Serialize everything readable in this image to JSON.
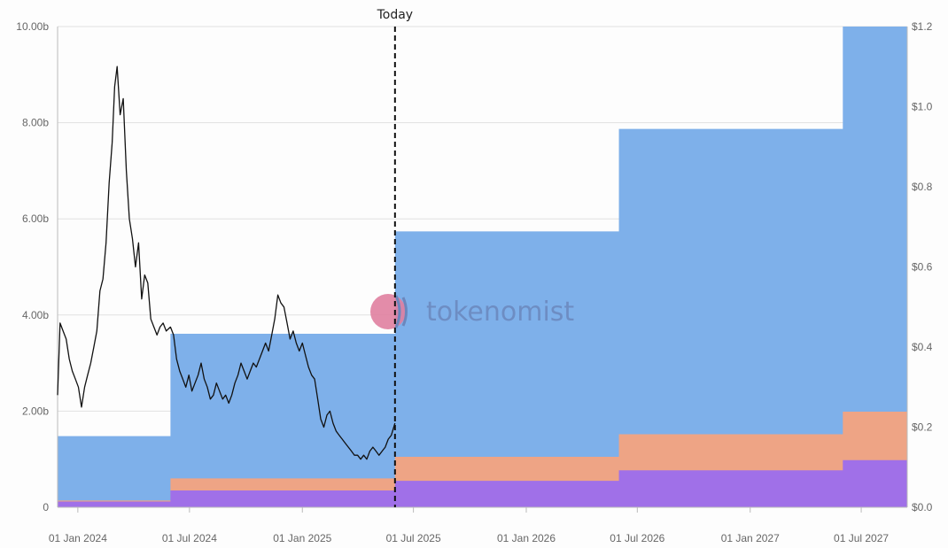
{
  "chart_data": {
    "type": "area",
    "watermark": "tokenomist",
    "today_label": "Today",
    "today_date": "2025-06-01",
    "x_range": [
      "2023-11-29",
      "2027-09-14"
    ],
    "x_ticks": [
      {
        "date": "2024-01-01",
        "label": "01 Jan 2024"
      },
      {
        "date": "2024-07-01",
        "label": "01 Jul 2024"
      },
      {
        "date": "2025-01-01",
        "label": "01 Jan 2025"
      },
      {
        "date": "2025-07-01",
        "label": "01 Jul 2025"
      },
      {
        "date": "2026-01-01",
        "label": "01 Jan 2026"
      },
      {
        "date": "2026-07-01",
        "label": "01 Jul 2026"
      },
      {
        "date": "2027-01-01",
        "label": "01 Jan 2027"
      },
      {
        "date": "2027-07-01",
        "label": "01 Jul 2027"
      }
    ],
    "y_left": {
      "range": [
        0,
        10
      ],
      "ticks": [
        {
          "value": 0,
          "label": "0"
        },
        {
          "value": 2,
          "label": "2.00b"
        },
        {
          "value": 4,
          "label": "4.00b"
        },
        {
          "value": 6,
          "label": "6.00b"
        },
        {
          "value": 8,
          "label": "8.00b"
        },
        {
          "value": 10,
          "label": "10.00b"
        }
      ]
    },
    "y_right": {
      "range": [
        0,
        1.2
      ],
      "ticks": [
        {
          "value": 0,
          "label": "$0.0"
        },
        {
          "value": 0.2,
          "label": "$0.2"
        },
        {
          "value": 0.4,
          "label": "$0.4"
        },
        {
          "value": 0.6,
          "label": "$0.6"
        },
        {
          "value": 0.8,
          "label": "$0.8"
        },
        {
          "value": 1.0,
          "label": "$1.0"
        },
        {
          "value": 1.2,
          "label": "$1.2"
        }
      ]
    },
    "grid": true,
    "series": [
      {
        "color": "#a070e8",
        "steps": [
          {
            "date": "2023-11-29",
            "value": 0.12
          },
          {
            "date": "2024-05-31",
            "value": 0.35
          },
          {
            "date": "2025-06-01",
            "value": 0.55
          },
          {
            "date": "2026-06-01",
            "value": 0.77
          },
          {
            "date": "2027-06-01",
            "value": 0.98
          }
        ]
      },
      {
        "color": "#eea485",
        "steps": [
          {
            "date": "2023-11-29",
            "value": 0.14
          },
          {
            "date": "2024-05-31",
            "value": 0.6
          },
          {
            "date": "2025-06-01",
            "value": 1.05
          },
          {
            "date": "2026-06-01",
            "value": 1.52
          },
          {
            "date": "2027-06-01",
            "value": 1.99
          }
        ]
      },
      {
        "color": "#7eb0ea",
        "steps": [
          {
            "date": "2023-11-29",
            "value": 1.48
          },
          {
            "date": "2024-05-31",
            "value": 3.61
          },
          {
            "date": "2025-06-01",
            "value": 5.74
          },
          {
            "date": "2026-06-01",
            "value": 7.87
          },
          {
            "date": "2027-06-01",
            "value": 10.0
          }
        ]
      }
    ],
    "price_series": {
      "axis": "right",
      "color": "#111111",
      "points": [
        [
          "2023-11-29",
          0.28
        ],
        [
          "2023-12-03",
          0.46
        ],
        [
          "2023-12-08",
          0.44
        ],
        [
          "2023-12-13",
          0.42
        ],
        [
          "2023-12-18",
          0.37
        ],
        [
          "2023-12-23",
          0.34
        ],
        [
          "2023-12-28",
          0.32
        ],
        [
          "2024-01-02",
          0.3
        ],
        [
          "2024-01-07",
          0.25
        ],
        [
          "2024-01-12",
          0.3
        ],
        [
          "2024-01-17",
          0.33
        ],
        [
          "2024-01-22",
          0.36
        ],
        [
          "2024-01-27",
          0.4
        ],
        [
          "2024-02-01",
          0.44
        ],
        [
          "2024-02-06",
          0.54
        ],
        [
          "2024-02-11",
          0.57
        ],
        [
          "2024-02-16",
          0.66
        ],
        [
          "2024-02-21",
          0.81
        ],
        [
          "2024-02-26",
          0.91
        ],
        [
          "2024-03-01",
          1.05
        ],
        [
          "2024-03-05",
          1.1
        ],
        [
          "2024-03-10",
          0.98
        ],
        [
          "2024-03-15",
          1.02
        ],
        [
          "2024-03-20",
          0.84
        ],
        [
          "2024-03-25",
          0.72
        ],
        [
          "2024-03-30",
          0.67
        ],
        [
          "2024-04-04",
          0.6
        ],
        [
          "2024-04-09",
          0.66
        ],
        [
          "2024-04-14",
          0.52
        ],
        [
          "2024-04-19",
          0.58
        ],
        [
          "2024-04-24",
          0.56
        ],
        [
          "2024-04-29",
          0.47
        ],
        [
          "2024-05-04",
          0.45
        ],
        [
          "2024-05-09",
          0.43
        ],
        [
          "2024-05-14",
          0.45
        ],
        [
          "2024-05-19",
          0.46
        ],
        [
          "2024-05-24",
          0.44
        ],
        [
          "2024-05-31",
          0.45
        ],
        [
          "2024-06-05",
          0.43
        ],
        [
          "2024-06-10",
          0.37
        ],
        [
          "2024-06-15",
          0.34
        ],
        [
          "2024-06-20",
          0.32
        ],
        [
          "2024-06-25",
          0.3
        ],
        [
          "2024-06-30",
          0.33
        ],
        [
          "2024-07-05",
          0.29
        ],
        [
          "2024-07-10",
          0.31
        ],
        [
          "2024-07-15",
          0.33
        ],
        [
          "2024-07-20",
          0.36
        ],
        [
          "2024-07-25",
          0.32
        ],
        [
          "2024-07-30",
          0.3
        ],
        [
          "2024-08-04",
          0.27
        ],
        [
          "2024-08-09",
          0.28
        ],
        [
          "2024-08-14",
          0.31
        ],
        [
          "2024-08-19",
          0.29
        ],
        [
          "2024-08-24",
          0.27
        ],
        [
          "2024-08-29",
          0.28
        ],
        [
          "2024-09-03",
          0.26
        ],
        [
          "2024-09-08",
          0.28
        ],
        [
          "2024-09-13",
          0.31
        ],
        [
          "2024-09-18",
          0.33
        ],
        [
          "2024-09-23",
          0.36
        ],
        [
          "2024-09-28",
          0.34
        ],
        [
          "2024-10-03",
          0.32
        ],
        [
          "2024-10-08",
          0.34
        ],
        [
          "2024-10-13",
          0.36
        ],
        [
          "2024-10-18",
          0.35
        ],
        [
          "2024-10-23",
          0.37
        ],
        [
          "2024-10-28",
          0.39
        ],
        [
          "2024-11-02",
          0.41
        ],
        [
          "2024-11-07",
          0.39
        ],
        [
          "2024-11-12",
          0.43
        ],
        [
          "2024-11-17",
          0.47
        ],
        [
          "2024-11-22",
          0.53
        ],
        [
          "2024-11-27",
          0.51
        ],
        [
          "2024-12-02",
          0.5
        ],
        [
          "2024-12-07",
          0.46
        ],
        [
          "2024-12-12",
          0.42
        ],
        [
          "2024-12-17",
          0.44
        ],
        [
          "2024-12-22",
          0.41
        ],
        [
          "2024-12-27",
          0.39
        ],
        [
          "2025-01-01",
          0.41
        ],
        [
          "2025-01-06",
          0.38
        ],
        [
          "2025-01-11",
          0.35
        ],
        [
          "2025-01-16",
          0.33
        ],
        [
          "2025-01-21",
          0.32
        ],
        [
          "2025-01-26",
          0.27
        ],
        [
          "2025-01-31",
          0.22
        ],
        [
          "2025-02-05",
          0.2
        ],
        [
          "2025-02-10",
          0.23
        ],
        [
          "2025-02-15",
          0.24
        ],
        [
          "2025-02-20",
          0.21
        ],
        [
          "2025-02-25",
          0.19
        ],
        [
          "2025-03-02",
          0.18
        ],
        [
          "2025-03-07",
          0.17
        ],
        [
          "2025-03-12",
          0.16
        ],
        [
          "2025-03-17",
          0.15
        ],
        [
          "2025-03-22",
          0.14
        ],
        [
          "2025-03-27",
          0.13
        ],
        [
          "2025-04-01",
          0.13
        ],
        [
          "2025-04-06",
          0.12
        ],
        [
          "2025-04-11",
          0.13
        ],
        [
          "2025-04-16",
          0.12
        ],
        [
          "2025-04-21",
          0.14
        ],
        [
          "2025-04-26",
          0.15
        ],
        [
          "2025-05-01",
          0.14
        ],
        [
          "2025-05-06",
          0.13
        ],
        [
          "2025-05-11",
          0.14
        ],
        [
          "2025-05-16",
          0.15
        ],
        [
          "2025-05-21",
          0.17
        ],
        [
          "2025-05-26",
          0.18
        ],
        [
          "2025-06-01",
          0.21
        ]
      ]
    }
  }
}
